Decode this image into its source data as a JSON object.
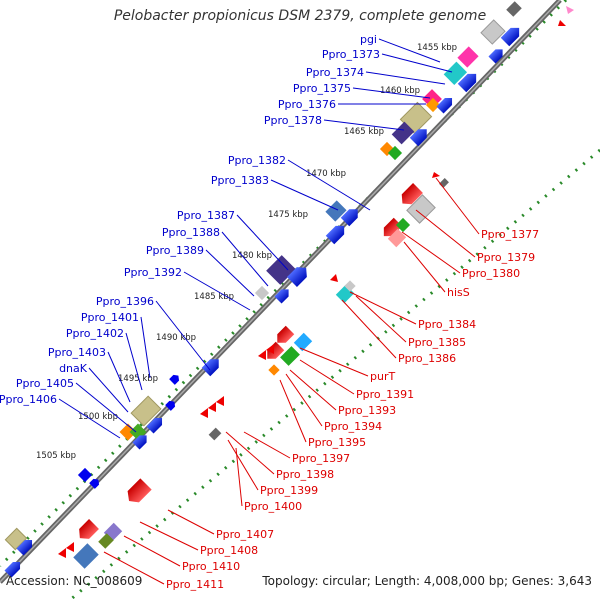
{
  "title": "Pelobacter propionicus DSM 2379, complete genome",
  "footer": {
    "accession": "Accession: NC_008609",
    "summary": "Topology: circular; Length: 4,008,000 bp; Genes: 3,643"
  },
  "ticks": [
    "1455 kbp",
    "1460 kbp",
    "1465 kbp",
    "1470 kbp",
    "1475 kbp",
    "1480 kbp",
    "1485 kbp",
    "1490 kbp",
    "1495 kbp",
    "1500 kbp",
    "1505 kbp"
  ],
  "labels_forward": [
    "pgi",
    "Ppro_1373",
    "Ppro_1374",
    "Ppro_1375",
    "Ppro_1376",
    "Ppro_1378",
    "Ppro_1382",
    "Ppro_1383",
    "Ppro_1387",
    "Ppro_1388",
    "Ppro_1389",
    "Ppro_1392",
    "Ppro_1396",
    "Ppro_1401",
    "Ppro_1402",
    "Ppro_1403",
    "dnaK",
    "Ppro_1405",
    "Ppro_1406"
  ],
  "labels_reverse": [
    "Ppro_1377",
    "Ppro_1379",
    "Ppro_1380",
    "hisS",
    "Ppro_1384",
    "Ppro_1385",
    "Ppro_1386",
    "purT",
    "Ppro_1391",
    "Ppro_1393",
    "Ppro_1394",
    "Ppro_1395",
    "Ppro_1397",
    "Ppro_1398",
    "Ppro_1399",
    "Ppro_1400",
    "Ppro_1407",
    "Ppro_1408",
    "Ppro_1410",
    "Ppro_1411"
  ],
  "colors": {
    "forward_label": "#0000cc",
    "reverse_label": "#dd0000",
    "forward_gene": "#0000ee",
    "reverse_gene": "#ee0000",
    "backbone": "#777777",
    "dotted_track": "#228822"
  }
}
